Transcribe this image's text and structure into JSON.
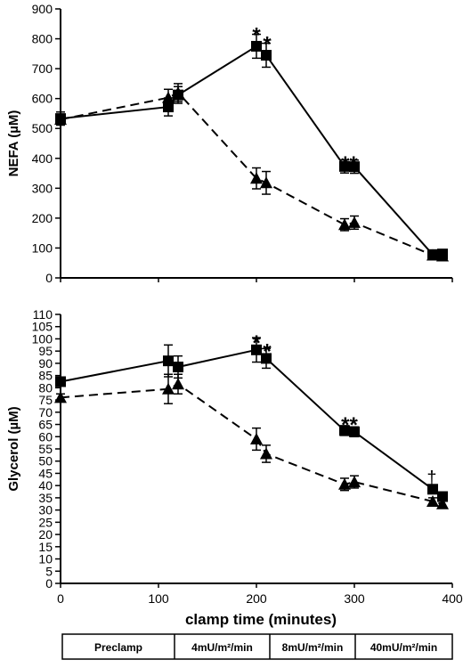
{
  "chart_data": [
    {
      "type": "line",
      "ylabel": "NEFA (µM)",
      "ylim": [
        0,
        900
      ],
      "yticks": [
        "0",
        "100",
        "200",
        "300",
        "400",
        "500",
        "600",
        "700",
        "800",
        "900"
      ],
      "xlim": [
        0,
        400
      ],
      "grid": false,
      "series": [
        {
          "marker": "square",
          "line_style": "solid",
          "color": "#000000",
          "points": [
            {
              "x": 0,
              "y": 533,
              "err": 22
            },
            {
              "x": 110,
              "y": 572,
              "err": 30
            },
            {
              "x": 120,
              "y": 612,
              "err": 28
            },
            {
              "x": 200,
              "y": 775,
              "err": 40
            },
            {
              "x": 210,
              "y": 745,
              "err": 40
            },
            {
              "x": 290,
              "y": 373,
              "err": 22
            },
            {
              "x": 300,
              "y": 372,
              "err": 22
            },
            {
              "x": 380,
              "y": 78,
              "err": 8
            },
            {
              "x": 390,
              "y": 80,
              "err": 10
            }
          ]
        },
        {
          "marker": "triangle",
          "line_style": "dashed",
          "color": "#000000",
          "points": [
            {
              "x": 0,
              "y": 530,
              "err": 18
            },
            {
              "x": 110,
              "y": 603,
              "err": 28
            },
            {
              "x": 120,
              "y": 620,
              "err": 30
            },
            {
              "x": 200,
              "y": 333,
              "err": 35
            },
            {
              "x": 210,
              "y": 318,
              "err": 38
            },
            {
              "x": 290,
              "y": 178,
              "err": 20
            },
            {
              "x": 300,
              "y": 185,
              "err": 22
            },
            {
              "x": 380,
              "y": 76,
              "err": 8
            },
            {
              "x": 390,
              "y": 73,
              "err": 8
            }
          ]
        }
      ],
      "annotations": [
        {
          "text": "*",
          "x": 200,
          "y": 830,
          "kind": "star"
        },
        {
          "text": "*",
          "x": 211,
          "y": 800,
          "kind": "star"
        },
        {
          "text": "**",
          "x": 295,
          "y": 400,
          "kind": "star"
        }
      ]
    },
    {
      "type": "line",
      "ylabel": "Glycerol (µM)",
      "xlabel": "clamp time (minutes)",
      "ylim": [
        0,
        110
      ],
      "yticks": [
        "0",
        "5",
        "10",
        "15",
        "20",
        "25",
        "30",
        "35",
        "40",
        "45",
        "50",
        "55",
        "60",
        "65",
        "70",
        "75",
        "80",
        "85",
        "90",
        "95",
        "100",
        "105",
        "110"
      ],
      "xlim": [
        0,
        400
      ],
      "xticks": [
        "0",
        "100",
        "200",
        "300",
        "400"
      ],
      "grid": false,
      "series": [
        {
          "marker": "square",
          "line_style": "solid",
          "color": "#000000",
          "points": [
            {
              "x": 0,
              "y": 82.5,
              "err": 1.5
            },
            {
              "x": 110,
              "y": 91,
              "err": 6.5
            },
            {
              "x": 120,
              "y": 88.5,
              "err": 4.5
            },
            {
              "x": 200,
              "y": 95.5,
              "err": 5
            },
            {
              "x": 210,
              "y": 92,
              "err": 4
            },
            {
              "x": 290,
              "y": 62.5,
              "err": 2
            },
            {
              "x": 300,
              "y": 62,
              "err": 2
            },
            {
              "x": 380,
              "y": 38.5,
              "err": 1.5
            },
            {
              "x": 390,
              "y": 35.5,
              "err": 1.5
            }
          ]
        },
        {
          "marker": "triangle",
          "line_style": "dashed",
          "color": "#000000",
          "points": [
            {
              "x": 0,
              "y": 76,
              "err": 1.5
            },
            {
              "x": 110,
              "y": 79.5,
              "err": 6
            },
            {
              "x": 120,
              "y": 81.5,
              "err": 4
            },
            {
              "x": 200,
              "y": 59,
              "err": 4.5
            },
            {
              "x": 210,
              "y": 53,
              "err": 3.5
            },
            {
              "x": 290,
              "y": 40.5,
              "err": 2.5
            },
            {
              "x": 300,
              "y": 41.5,
              "err": 2.5
            },
            {
              "x": 380,
              "y": 33.5,
              "err": 1.5
            },
            {
              "x": 390,
              "y": 32.5,
              "err": 1.5
            }
          ]
        }
      ],
      "annotations": [
        {
          "text": "*",
          "x": 200,
          "y": 100.5,
          "kind": "star"
        },
        {
          "text": "*",
          "x": 211,
          "y": 97,
          "kind": "star"
        },
        {
          "text": "**",
          "x": 295,
          "y": 67,
          "kind": "star"
        },
        {
          "text": "†",
          "x": 379,
          "y": 43,
          "kind": "dagger"
        }
      ]
    }
  ],
  "legend_table": [
    "Preclamp",
    "4mU/m²/min",
    "8mU/m²/min",
    "40mU/m²/min"
  ]
}
